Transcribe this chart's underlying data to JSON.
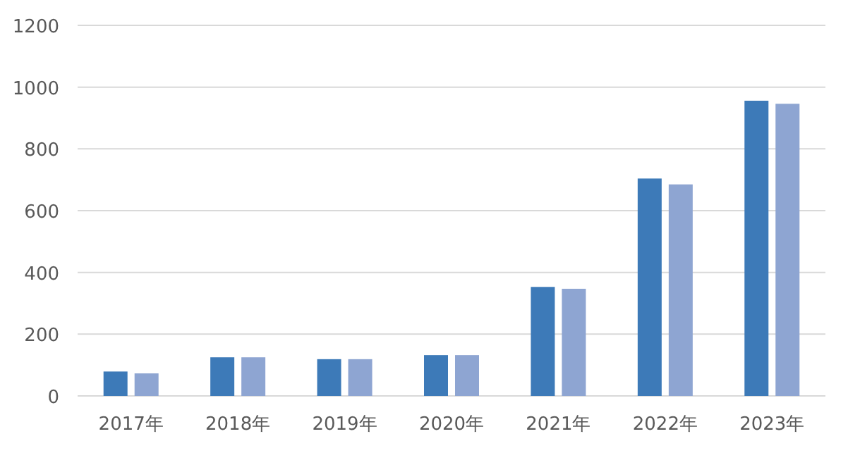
{
  "chart_data": {
    "type": "bar",
    "categories": [
      "2017年",
      "2018年",
      "2019年",
      "2020年",
      "2021年",
      "2022年",
      "2023年"
    ],
    "series": [
      {
        "color": "#3d7ab8",
        "values": [
          79,
          125,
          119,
          132,
          353,
          704,
          956
        ]
      },
      {
        "color": "#8ea5d2",
        "values": [
          73,
          125,
          119,
          132,
          347,
          685,
          946
        ]
      }
    ],
    "ylim": [
      0,
      1200
    ],
    "yticks": [
      0,
      200,
      400,
      600,
      800,
      1000,
      1200
    ],
    "grid": "y"
  }
}
